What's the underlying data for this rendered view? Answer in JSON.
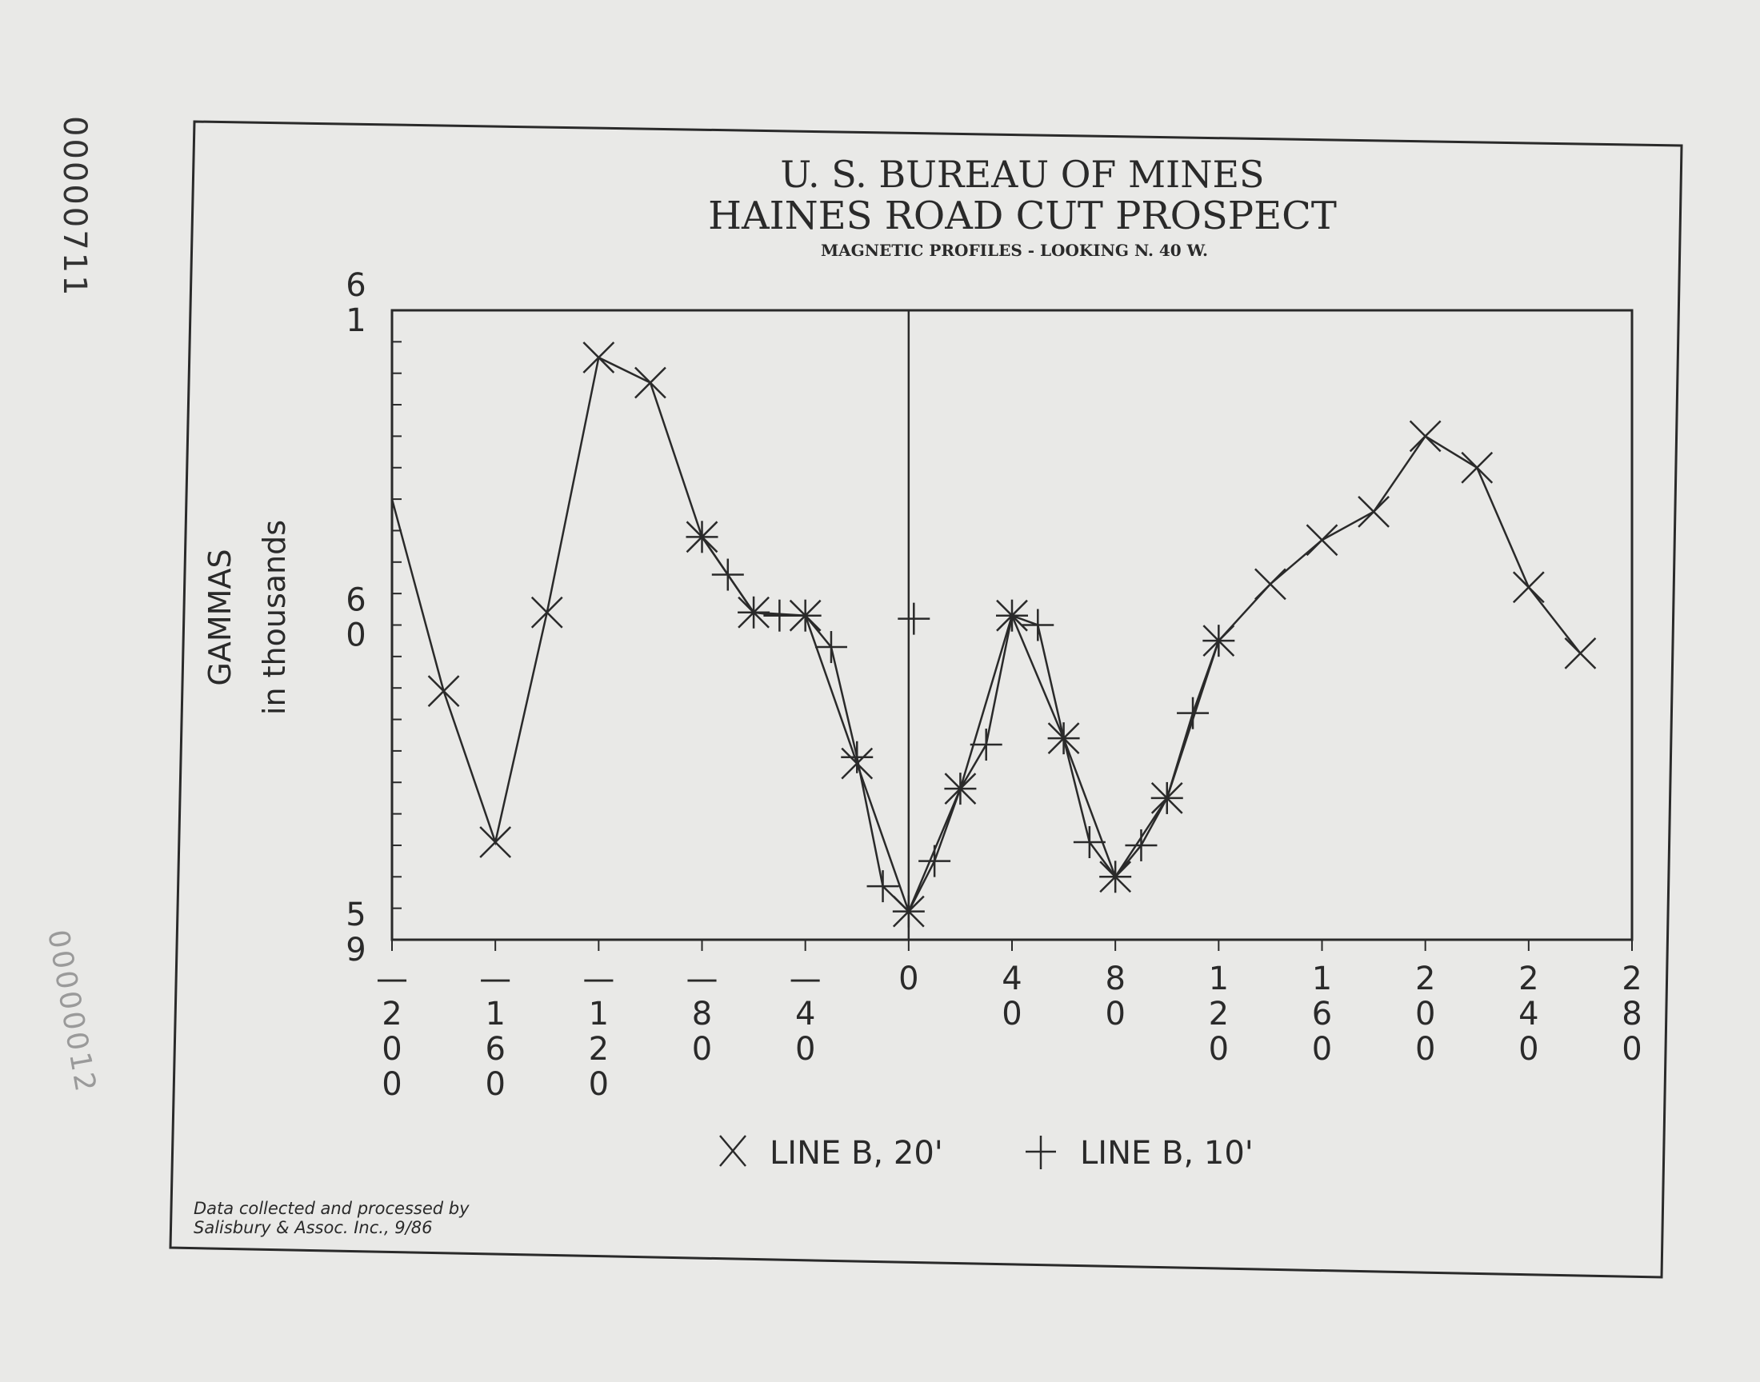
{
  "chart_data": {
    "type": "line",
    "title": "U. S. BUREAU OF MINES",
    "subtitle": "HAINES ROAD CUT PROSPECT",
    "subsubtitle": "MAGNETIC PROFILES - LOOKING N. 40 W.",
    "ylabel": "GAMMAS",
    "ylabel2": "in thousands",
    "xlabel": "",
    "xlim": [
      -200,
      280
    ],
    "ylim": [
      59,
      61
    ],
    "x_ticks": [
      -200,
      -160,
      -120,
      -80,
      -40,
      0,
      40,
      80,
      120,
      160,
      200,
      240,
      280
    ],
    "x_tick_labels": [
      "-200",
      "-160",
      "-120",
      "-80",
      "-40",
      "0",
      "40",
      "80",
      "120",
      "160",
      "200",
      "240",
      "280"
    ],
    "y_ticks": [
      59,
      60,
      61
    ],
    "y_tick_labels": [
      "59",
      "60",
      "61"
    ],
    "y_minor_step": 0.1,
    "zero_line": true,
    "grid": false,
    "legend_position": "bottom-center",
    "series": [
      {
        "name": "LINE B, 20'",
        "marker": "x",
        "x": [
          -200,
          -180,
          -160,
          -140,
          -120,
          -100,
          -80,
          -60,
          -40,
          -20,
          0,
          20,
          40,
          60,
          80,
          100,
          120,
          140,
          160,
          180,
          200,
          220,
          240,
          260
        ],
        "y": [
          60.4,
          59.79,
          59.31,
          60.04,
          60.85,
          60.77,
          60.28,
          60.04,
          60.03,
          59.56,
          59.09,
          59.48,
          60.03,
          59.64,
          59.2,
          59.45,
          59.95,
          60.13,
          60.27,
          60.36,
          60.6,
          60.5,
          60.12,
          59.91
        ],
        "first_point_marker": false
      },
      {
        "name": "LINE B, 10'",
        "marker": "plus",
        "x": [
          -80,
          -70,
          -60,
          -50,
          -40,
          -30,
          -20,
          -10,
          0,
          10,
          20,
          30,
          40,
          50,
          60,
          70,
          80,
          90,
          100,
          110,
          120
        ],
        "y": [
          60.28,
          60.16,
          60.04,
          60.03,
          60.03,
          59.93,
          59.58,
          59.17,
          59.09,
          59.25,
          59.48,
          59.62,
          60.03,
          60.0,
          59.64,
          59.31,
          59.2,
          59.3,
          59.45,
          59.72,
          59.95
        ]
      }
    ],
    "unconnected_markers": [
      {
        "marker": "plus",
        "x": 2,
        "y": 60.02
      }
    ],
    "credit": [
      "Data collected and processed by",
      "Salisbury & Assoc. Inc., 9/86"
    ]
  },
  "stamps": [
    "00000711",
    "00000012"
  ],
  "colors": {
    "ink": "#2a2a2a",
    "paper": "#e9e9e7",
    "stamp_faded": "#9a9a9a"
  }
}
